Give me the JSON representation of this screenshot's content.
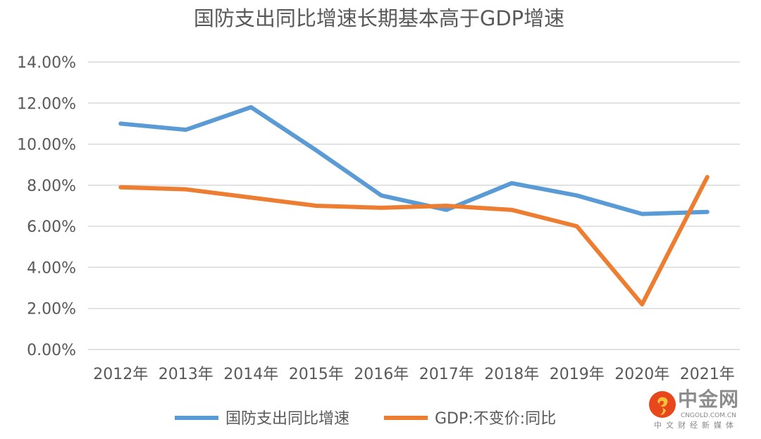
{
  "chart_data": {
    "type": "line",
    "title": "国防支出同比增速长期基本高于GDP增速",
    "categories": [
      "2012年",
      "2013年",
      "2014年",
      "2015年",
      "2016年",
      "2017年",
      "2018年",
      "2019年",
      "2020年",
      "2021年"
    ],
    "ylim": [
      0,
      14
    ],
    "yticks": [
      "0.00%",
      "2.00%",
      "4.00%",
      "6.00%",
      "8.00%",
      "10.00%",
      "12.00%",
      "14.00%"
    ],
    "grid": true,
    "legend_position": "bottom",
    "series": [
      {
        "name": "国防支出同比增速",
        "color": "#5B9BD5",
        "values": [
          11.0,
          10.7,
          11.8,
          9.7,
          7.5,
          6.8,
          8.1,
          7.5,
          6.6,
          6.7
        ]
      },
      {
        "name": "GDP:不变价:同比",
        "color": "#ED7D31",
        "values": [
          7.9,
          7.8,
          7.4,
          7.0,
          6.9,
          7.0,
          6.8,
          6.0,
          2.2,
          8.4
        ]
      }
    ]
  },
  "logo": {
    "name": "中金网",
    "domain": "CNGOLD.COM.CN",
    "tagline": "中文财经新媒体"
  }
}
